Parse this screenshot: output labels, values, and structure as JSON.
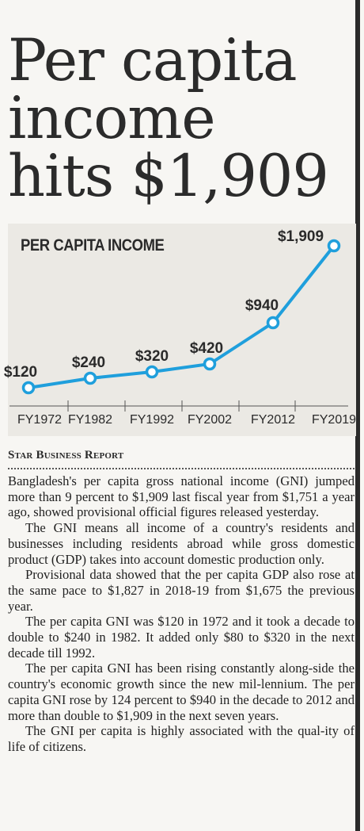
{
  "headline": {
    "line1": "Per capita",
    "line2": "income",
    "line3": "hits $1,909"
  },
  "byline": "Star Business Report",
  "chart_data": {
    "type": "line",
    "title": "PER CAPITA INCOME",
    "categories": [
      "FY1972",
      "FY1982",
      "FY1992",
      "FY2002",
      "FY2012",
      "FY2019"
    ],
    "values": [
      120,
      240,
      320,
      420,
      940,
      1909
    ],
    "value_labels": [
      "$120",
      "$240",
      "$320",
      "$420",
      "$940",
      "$1,909"
    ],
    "line_color": "#1f9fdc",
    "marker_fill": "#ffffff",
    "grid": false
  },
  "paragraphs": [
    "Bangladesh's per capita gross national income (GNI) jumped more than 9 percent to $1,909 last fiscal year from $1,751 a year ago, showed provisional official figures released yesterday.",
    "The GNI means all income of a country's residents and businesses including residents abroad while gross domestic product (GDP) takes into account domestic production only.",
    "Provisional data showed that the per capita GDP also rose at the same pace to $1,827 in 2018-19 from $1,675 the previous year.",
    "The per capita GNI was $120 in 1972 and it took a decade to double to $240 in 1982. It added only $80 to $320 in the next decade till 1992.",
    "The per capita GNI has been rising constantly along-side the country's economic growth since the new mil-lennium. The per capita GNI rose by 124 percent to $940 in the decade to 2012 and more than double to $1,909 in the next seven years.",
    "The GNI per capita is highly associated with the qual-ity of life of citizens."
  ]
}
